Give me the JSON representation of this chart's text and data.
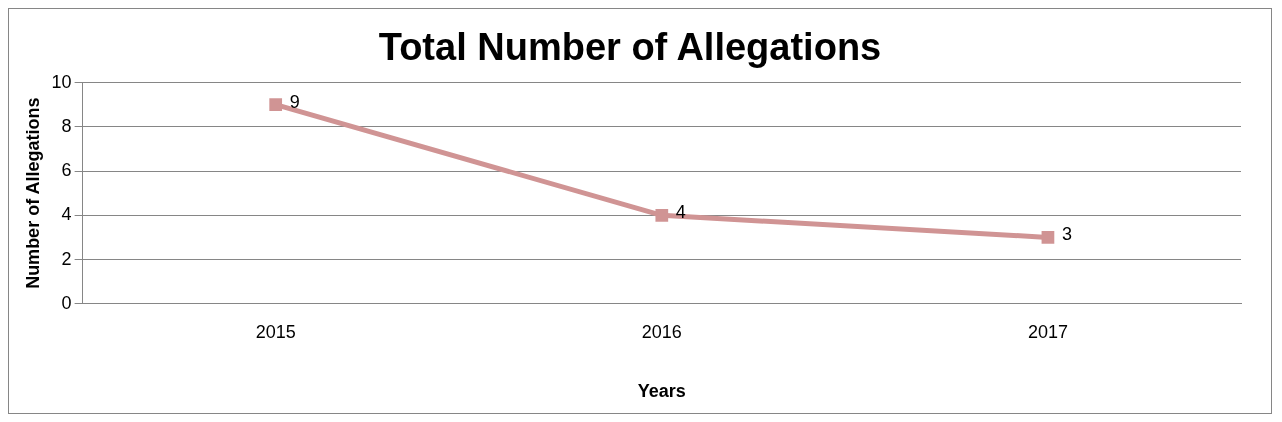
{
  "chart_data": {
    "type": "line",
    "title": "Total Number of Allegations",
    "xlabel": "Years",
    "ylabel": "Number of Allegations",
    "categories": [
      "2015",
      "2016",
      "2017"
    ],
    "series": [
      {
        "color": "#d09494",
        "values": [
          9,
          4,
          3
        ]
      }
    ],
    "ylim": [
      0,
      10
    ],
    "yticks": [
      0,
      2,
      4,
      6,
      8,
      10
    ],
    "grid": "y",
    "marker": "square",
    "line_style": "solid",
    "data_labels": true
  }
}
